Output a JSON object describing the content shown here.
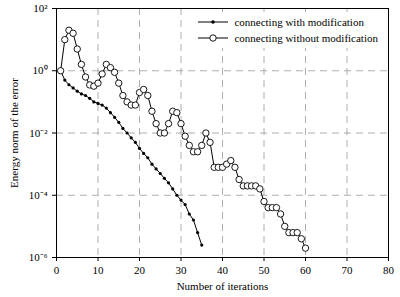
{
  "chart_data": {
    "type": "line",
    "xlabel": "Number of iterations",
    "ylabel": "Energy norm of the error",
    "log": "y",
    "grid": true,
    "legend": "upper right",
    "xlim": [
      0,
      80
    ],
    "xticks": [
      0,
      10,
      20,
      30,
      40,
      50,
      60,
      70,
      80
    ],
    "ylim": [
      1e-06,
      100
    ],
    "yticks": [
      {
        "value": 1e-06,
        "label": "10⁻⁶"
      },
      {
        "value": 0.0001,
        "label": "10⁻⁴"
      },
      {
        "value": 0.01,
        "label": "10⁻²"
      },
      {
        "value": 1,
        "label": "10⁰"
      },
      {
        "value": 100,
        "label": "10²"
      }
    ],
    "x": [
      1,
      2,
      3,
      4,
      5,
      6,
      7,
      8,
      9,
      10,
      11,
      12,
      13,
      14,
      15,
      16,
      17,
      18,
      19,
      20,
      21,
      22,
      23,
      24,
      25,
      26,
      27,
      28,
      29,
      30,
      31,
      32,
      33,
      34,
      35,
      36,
      37,
      38,
      39,
      40,
      41,
      42,
      43,
      44,
      45,
      46,
      47,
      48,
      49,
      50,
      51,
      52,
      53,
      54,
      55,
      56,
      57,
      58,
      59,
      60
    ],
    "series": [
      {
        "name": "connecting with modification",
        "color": "#000000",
        "marker": "dot",
        "values": [
          1,
          0.5,
          0.355,
          0.28,
          0.22,
          0.18,
          0.16,
          0.13,
          0.1,
          0.089,
          0.079,
          0.063,
          0.045,
          0.032,
          0.022,
          0.014,
          0.01,
          0.007,
          0.005,
          0.0032,
          0.0022,
          0.0016,
          0.001,
          0.0007,
          0.0005,
          0.00035,
          0.00025,
          0.00016,
          0.0001,
          7e-05,
          5e-05,
          2.5e-05,
          1.6e-05,
          6.3e-06,
          2.5e-06,
          null,
          null,
          null,
          null,
          null,
          null,
          null,
          null,
          null,
          null,
          null,
          null,
          null,
          null,
          null,
          null,
          null,
          null,
          null,
          null,
          null,
          null,
          null,
          null,
          null
        ]
      },
      {
        "name": "connecting without modification",
        "color": "#000000",
        "marker": "circle",
        "values": [
          1,
          10,
          20,
          16,
          5,
          1.6,
          0.63,
          0.35,
          0.32,
          0.4,
          0.79,
          1.6,
          1.26,
          0.89,
          0.4,
          0.16,
          0.1,
          0.079,
          0.079,
          0.2,
          0.25,
          0.16,
          0.05,
          0.02,
          0.01,
          0.01,
          0.02,
          0.05,
          0.045,
          0.02,
          0.0079,
          0.004,
          0.0025,
          0.0025,
          0.004,
          0.01,
          0.005,
          0.00079,
          0.00079,
          0.00079,
          0.001,
          0.0013,
          0.00079,
          0.00032,
          0.0002,
          0.0002,
          0.0002,
          0.0002,
          0.00016,
          6.3e-05,
          4e-05,
          4e-05,
          4e-05,
          2.5e-05,
          1e-05,
          6.3e-06,
          6.3e-06,
          6.3e-06,
          4e-06,
          2e-06
        ]
      }
    ]
  }
}
